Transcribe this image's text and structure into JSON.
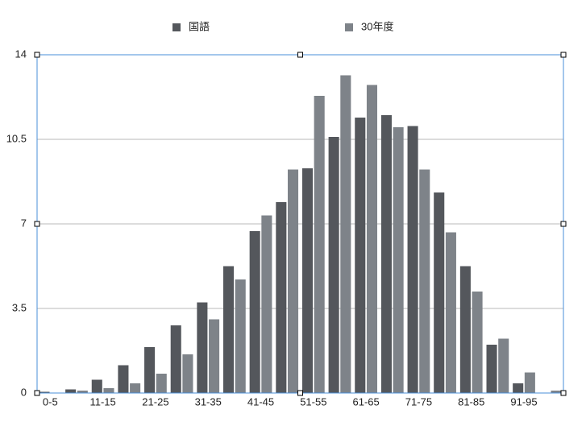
{
  "chart_data": {
    "type": "bar",
    "categories": [
      "0-5",
      null,
      "11-15",
      null,
      "21-25",
      null,
      "31-35",
      null,
      "41-45",
      null,
      "51-55",
      null,
      "61-65",
      null,
      "71-75",
      null,
      "81-85",
      null,
      "91-95",
      null
    ],
    "series": [
      {
        "name": "国語",
        "color": "#54575c",
        "values": [
          0.05,
          0.15,
          0.55,
          1.15,
          1.9,
          2.8,
          3.75,
          5.25,
          6.7,
          7.9,
          9.3,
          10.6,
          11.4,
          11.5,
          11.05,
          8.3,
          5.25,
          2.0,
          0.4,
          0
        ]
      },
      {
        "name": "30年度",
        "color": "#7e8389",
        "values": [
          0,
          0.1,
          0.2,
          0.4,
          0.8,
          1.6,
          3.05,
          4.7,
          7.35,
          9.25,
          12.3,
          13.15,
          12.75,
          11.0,
          9.25,
          6.65,
          4.2,
          2.25,
          0.85,
          0.1
        ]
      }
    ],
    "ylim": [
      0,
      14
    ],
    "yticks": [
      0,
      3.5,
      7,
      10.5,
      14
    ],
    "grid": true
  }
}
